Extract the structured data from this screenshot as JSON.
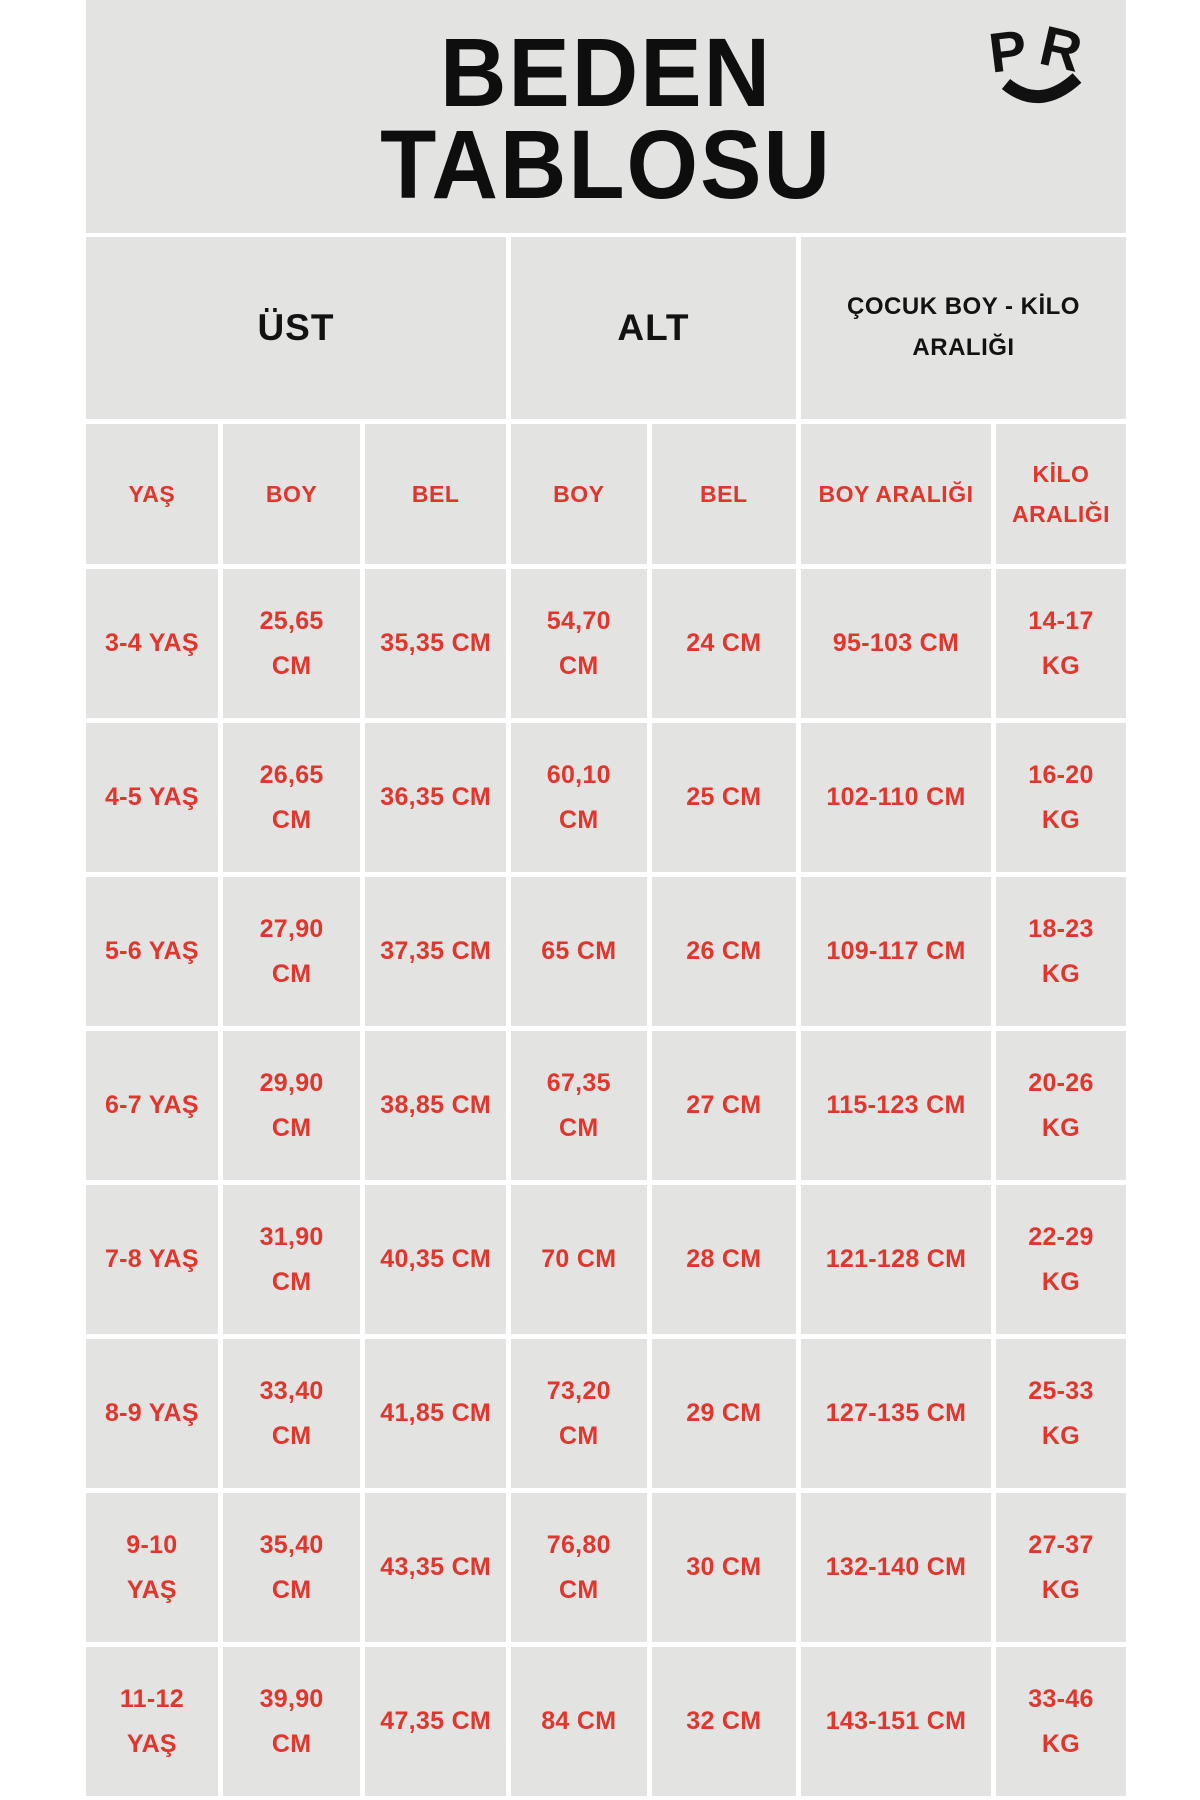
{
  "page": {
    "title_line1": "BEDEN",
    "title_line2": "TABLOSU",
    "logo_letters": [
      "P",
      "R"
    ]
  },
  "colors": {
    "page_background": "#ffffff",
    "cell_background": "#e3e3e1",
    "title_text": "#0e0e0e",
    "table_text_red": "#e0362d",
    "logo_black": "#111111"
  },
  "chart_data": {
    "type": "table",
    "title": "BEDEN TABLOSU",
    "group_headers": [
      {
        "label": "ÜST",
        "colspan": 3
      },
      {
        "label": "ALT",
        "colspan": 2
      },
      {
        "label": "ÇOCUK BOY - KİLO ARALIĞI",
        "colspan": 2
      }
    ],
    "columns": [
      "YAŞ",
      "BOY",
      "BEL",
      "BOY",
      "BEL",
      "BOY ARALIĞI",
      "KİLO ARALIĞI"
    ],
    "rows": [
      [
        "3-4 YAŞ",
        "25,65 CM",
        "35,35 CM",
        "54,70 CM",
        "24 CM",
        "95-103 CM",
        "14-17 KG"
      ],
      [
        "4-5 YAŞ",
        "26,65 CM",
        "36,35 CM",
        "60,10 CM",
        "25 CM",
        "102-110 CM",
        "16-20 KG"
      ],
      [
        "5-6 YAŞ",
        "27,90 CM",
        "37,35 CM",
        "65 CM",
        "26 CM",
        "109-117 CM",
        "18-23 KG"
      ],
      [
        "6-7 YAŞ",
        "29,90 CM",
        "38,85 CM",
        "67,35 CM",
        "27 CM",
        "115-123 CM",
        "20-26 KG"
      ],
      [
        "7-8 YAŞ",
        "31,90 CM",
        "40,35 CM",
        "70 CM",
        "28 CM",
        "121-128 CM",
        "22-29 KG"
      ],
      [
        "8-9 YAŞ",
        "33,40 CM",
        "41,85 CM",
        "73,20 CM",
        "29 CM",
        "127-135 CM",
        "25-33 KG"
      ],
      [
        "9-10 YAŞ",
        "35,40 CM",
        "43,35 CM",
        "76,80 CM",
        "30 CM",
        "132-140 CM",
        "27-37 KG"
      ],
      [
        "11-12 YAŞ",
        "39,90 CM",
        "47,35 CM",
        "84 CM",
        "32 CM",
        "143-151 CM",
        "33-46 KG"
      ]
    ]
  }
}
